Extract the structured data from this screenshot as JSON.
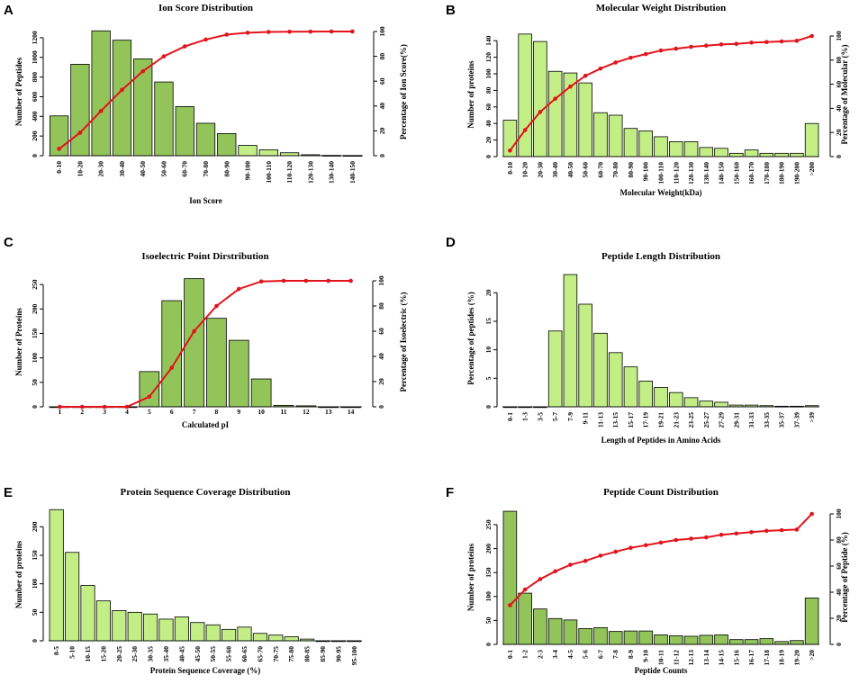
{
  "chart_data": [
    {
      "panel": "A",
      "type": "bar",
      "title": "Ion Score Distribution",
      "xlabel": "Ion Score",
      "ylabel": "Number of Peptides",
      "y2label": "Percentage of Ion Score(%)",
      "categories": [
        "0-10",
        "10-20",
        "20-30",
        "30-40",
        "40-50",
        "50-60",
        "60-70",
        "70-80",
        "80-90",
        "90-100",
        "100-110",
        "110-120",
        "120-130",
        "130-140",
        "140-150"
      ],
      "values": [
        405,
        930,
        1270,
        1175,
        985,
        750,
        500,
        330,
        225,
        105,
        60,
        30,
        10,
        3,
        2
      ],
      "bar_colors": [
        "#92c45a",
        "#92c45a",
        "#92c45a",
        "#92c45a",
        "#92c45a",
        "#92c45a",
        "#92c45a",
        "#92c45a",
        "#92c45a",
        "#c3ee86",
        "#c3ee86",
        "#c3ee86",
        "#c3ee86",
        "#c3ee86",
        "#c3ee86"
      ],
      "ylim": [
        0,
        1300
      ],
      "yticks": [
        0,
        200,
        400,
        600,
        800,
        1000,
        1200
      ],
      "cumulative": [
        5.5,
        18.5,
        36,
        53,
        68,
        80,
        88,
        93.5,
        97.5,
        99,
        99.6,
        99.8,
        99.9,
        100,
        100
      ],
      "y2lim": [
        0,
        100
      ],
      "y2ticks": [
        0,
        20,
        40,
        60,
        80,
        100
      ]
    },
    {
      "panel": "B",
      "type": "bar",
      "title": "Molecular Weight Distribution",
      "xlabel": "Molecular Weight(kDa)",
      "ylabel": "Number of proteins",
      "y2label": "Percentage of Molecular (%)",
      "categories": [
        "0-10",
        "10-20",
        "20-30",
        "30-40",
        "40-50",
        "50-60",
        "60-70",
        "70-80",
        "80-90",
        "90-100",
        "100-110",
        "110-120",
        "120-130",
        "130-140",
        "140-150",
        "150-160",
        "160-170",
        "170-180",
        "180-190",
        "190-200",
        ">200"
      ],
      "values": [
        44,
        148,
        139,
        103,
        101,
        89,
        53,
        50,
        34,
        31,
        24,
        18,
        18,
        11,
        10,
        4,
        8,
        4,
        4,
        4,
        40
      ],
      "bar_colors": [
        "#c3ee86",
        "#c3ee86",
        "#c3ee86",
        "#c3ee86",
        "#c3ee86",
        "#c3ee86",
        "#c3ee86",
        "#c3ee86",
        "#c3ee86",
        "#c3ee86",
        "#c3ee86",
        "#c3ee86",
        "#c3ee86",
        "#c3ee86",
        "#c3ee86",
        "#c3ee86",
        "#c3ee86",
        "#c3ee86",
        "#c3ee86",
        "#c3ee86",
        "#c3ee86"
      ],
      "ylim": [
        0,
        150
      ],
      "yticks": [
        0,
        20,
        40,
        60,
        80,
        100,
        120,
        140
      ],
      "cumulative": [
        5,
        22,
        37,
        48,
        58,
        67,
        73,
        78,
        82,
        85,
        88,
        89.5,
        91,
        92,
        93,
        93.5,
        94.5,
        95,
        95.5,
        96,
        100
      ],
      "y2lim": [
        0,
        100
      ],
      "y2ticks": [
        0,
        20,
        40,
        60,
        80,
        100
      ]
    },
    {
      "panel": "C",
      "type": "bar",
      "title": "Isoelectric Point Dirstribution",
      "xlabel": "Calculated pI",
      "ylabel": "Number of Proteins",
      "y2label": "Percentage of Isoelectric (%)",
      "categories": [
        "1",
        "2",
        "3",
        "4",
        "5",
        "6",
        "7",
        "8",
        "9",
        "10",
        "11",
        "12",
        "13",
        "14"
      ],
      "values": [
        0,
        0,
        0,
        0,
        72,
        217,
        262,
        181,
        136,
        57,
        3,
        2,
        0,
        0
      ],
      "bar_colors": [
        "#92c45a",
        "#92c45a",
        "#92c45a",
        "#92c45a",
        "#92c45a",
        "#92c45a",
        "#92c45a",
        "#92c45a",
        "#92c45a",
        "#92c45a",
        "#92c45a",
        "#92c45a",
        "#92c45a",
        "#92c45a"
      ],
      "ylim": [
        0,
        265
      ],
      "yticks": [
        0,
        50,
        100,
        150,
        200,
        250
      ],
      "cumulative": [
        0,
        0,
        0,
        0,
        8,
        31,
        60,
        80,
        93.5,
        99.5,
        100,
        100,
        100,
        100
      ],
      "y2lim": [
        0,
        100
      ],
      "y2ticks": [
        0,
        20,
        40,
        60,
        80,
        100
      ]
    },
    {
      "panel": "D",
      "type": "bar",
      "title": "Peptide Length Distribution",
      "xlabel": "Length of Peptides in Amino Acids",
      "ylabel": "Percentage of peptides (%)",
      "categories": [
        "0-1",
        "1-3",
        "3-5",
        "5-7",
        "7-9",
        "9-11",
        "11-13",
        "13-15",
        "15-17",
        "17-19",
        "19-21",
        "21-23",
        "23-25",
        "25-27",
        "27-29",
        "29-31",
        "31-33",
        "33-35",
        "35-37",
        "37-39",
        ">39"
      ],
      "values": [
        0,
        0,
        0,
        13.3,
        23.2,
        18,
        12.9,
        9.5,
        7,
        4.5,
        3.4,
        2.5,
        1.6,
        1,
        0.8,
        0.3,
        0.3,
        0.2,
        0.1,
        0.1,
        0.2
      ],
      "bar_colors": [
        "#c3ee86",
        "#c3ee86",
        "#c3ee86",
        "#c3ee86",
        "#c3ee86",
        "#c3ee86",
        "#c3ee86",
        "#c3ee86",
        "#c3ee86",
        "#c3ee86",
        "#c3ee86",
        "#c3ee86",
        "#c3ee86",
        "#c3ee86",
        "#c3ee86",
        "#c3ee86",
        "#c3ee86",
        "#c3ee86",
        "#c3ee86",
        "#c3ee86",
        "#c3ee86"
      ],
      "ylim": [
        0,
        24
      ],
      "yticks": [
        0,
        5,
        10,
        15,
        20
      ]
    },
    {
      "panel": "E",
      "type": "bar",
      "title": "Protein Sequence Coverage Distribution",
      "xlabel": "Protein Sequence Coverage (%)",
      "ylabel": "Number of proteins",
      "categories": [
        "0-5",
        "5-10",
        "10-15",
        "15-20",
        "20-25",
        "25-30",
        "30-35",
        "35-40",
        "40-45",
        "45-50",
        "50-55",
        "55-60",
        "60-65",
        "65-70",
        "70-75",
        "75-80",
        "80-85",
        "85-90",
        "90-95",
        "95-100"
      ],
      "values": [
        230,
        155,
        97,
        70,
        53,
        50,
        47,
        38,
        42,
        32,
        28,
        20,
        24,
        13,
        10,
        7,
        3,
        0,
        0,
        0
      ],
      "bar_colors": [
        "#c3ee86",
        "#c3ee86",
        "#c3ee86",
        "#c3ee86",
        "#c3ee86",
        "#c3ee86",
        "#c3ee86",
        "#c3ee86",
        "#c3ee86",
        "#c3ee86",
        "#c3ee86",
        "#c3ee86",
        "#c3ee86",
        "#c3ee86",
        "#c3ee86",
        "#c3ee86",
        "#c3ee86",
        "#c3ee86",
        "#c3ee86",
        "#c3ee86"
      ],
      "ylim": [
        0,
        232
      ],
      "yticks": [
        0,
        50,
        100,
        150,
        200
      ]
    },
    {
      "panel": "F",
      "type": "bar",
      "title": "Peptide Count Distribution",
      "xlabel": "Peptide Counts",
      "ylabel": "Number of proteins",
      "y2label": "Percentage of Peptide (%)",
      "categories": [
        "0-1",
        "1-2",
        "2-3",
        "3-4",
        "4-5",
        "5-6",
        "6-7",
        "7-8",
        "8-9",
        "9-10",
        "10-11",
        "11-12",
        "12-13",
        "13-14",
        "14-15",
        "15-16",
        "16-17",
        "17-18",
        "18-19",
        "19-20",
        ">20"
      ],
      "values": [
        278,
        107,
        74,
        54,
        51,
        33,
        35,
        27,
        28,
        28,
        20,
        18,
        17,
        19,
        20,
        10,
        10,
        12,
        6,
        8,
        97
      ],
      "bar_colors": [
        "#92c45a",
        "#92c45a",
        "#92c45a",
        "#92c45a",
        "#92c45a",
        "#92c45a",
        "#92c45a",
        "#92c45a",
        "#92c45a",
        "#92c45a",
        "#92c45a",
        "#92c45a",
        "#92c45a",
        "#92c45a",
        "#92c45a",
        "#92c45a",
        "#92c45a",
        "#92c45a",
        "#92c45a",
        "#92c45a",
        "#92c45a"
      ],
      "ylim": [
        0,
        280
      ],
      "yticks": [
        0,
        50,
        100,
        150,
        200,
        250
      ],
      "cumulative": [
        30,
        42,
        50,
        56,
        61,
        64,
        68,
        71,
        74,
        76,
        78,
        80,
        81,
        82,
        84,
        85,
        86,
        87,
        87.5,
        88,
        100
      ],
      "y2lim": [
        0,
        100
      ],
      "y2ticks": [
        0,
        20,
        40,
        60,
        80,
        100
      ]
    }
  ],
  "style": {
    "line_color": "#e3131b",
    "axis_color": "#000000"
  }
}
